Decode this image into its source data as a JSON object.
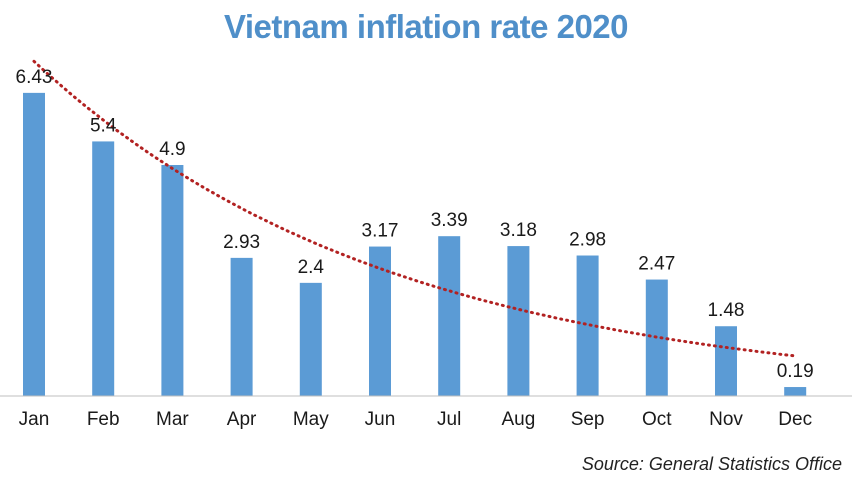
{
  "chart_data": {
    "type": "bar",
    "title": "Vietnam inflation rate 2020",
    "categories": [
      "Jan",
      "Feb",
      "Mar",
      "Apr",
      "May",
      "Jun",
      "Jul",
      "Aug",
      "Sep",
      "Oct",
      "Nov",
      "Dec"
    ],
    "values": [
      6.43,
      5.4,
      4.9,
      2.93,
      2.4,
      3.17,
      3.39,
      3.18,
      2.98,
      2.47,
      1.48,
      0.19
    ],
    "value_labels": [
      "6.43",
      "5.4",
      "4.9",
      "2.93",
      "2.4",
      "3.17",
      "3.39",
      "3.18",
      "2.98",
      "2.47",
      "1.48",
      "0.19"
    ],
    "xlabel": "",
    "ylabel": "",
    "ylim": [
      0,
      7.0
    ],
    "grid": false,
    "trendline": {
      "type": "polynomial",
      "style": "dotted",
      "color": "#b22222",
      "start_value": 7.1,
      "end_value": 0.85
    },
    "bar_color": "#5b9bd5",
    "source": "Source: General Statistics Office"
  }
}
